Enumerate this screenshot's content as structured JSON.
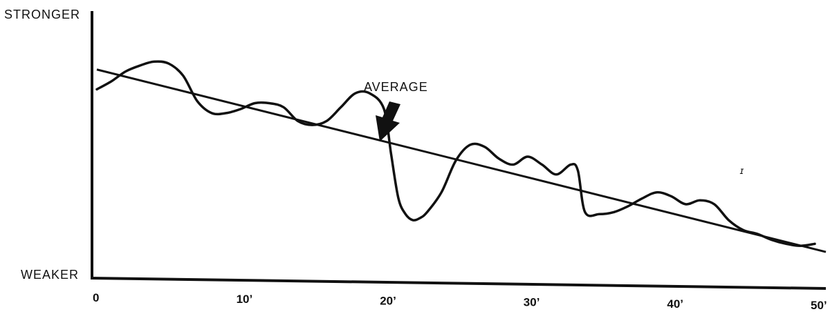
{
  "chart_data": {
    "type": "line",
    "ylabel_top": "STRONGER",
    "ylabel_bottom": "WEAKER",
    "annotation": "AVERAGE",
    "x_ticks": [
      {
        "value": 0,
        "label": "0"
      },
      {
        "value": 10,
        "label": "10’"
      },
      {
        "value": 20,
        "label": "20’"
      },
      {
        "value": 30,
        "label": "30’"
      },
      {
        "value": 40,
        "label": "40’"
      },
      {
        "value": 50,
        "label": "50’"
      }
    ],
    "xlim": [
      0,
      50
    ],
    "ylim": [
      0,
      1
    ],
    "grid": false,
    "series": [
      {
        "role": "average",
        "x": [
          0,
          50
        ],
        "y": [
          0.98,
          0.08
        ]
      },
      {
        "role": "signal",
        "x": [
          0,
          1,
          2,
          3,
          4,
          5,
          6,
          7,
          8,
          9,
          10,
          11,
          12,
          13,
          14,
          15,
          16,
          17,
          18,
          19,
          20,
          20.5,
          21,
          21.5,
          22,
          22.5,
          23,
          24,
          25,
          26,
          27,
          28,
          29,
          30,
          31,
          32,
          33,
          33.5,
          34,
          35,
          36,
          37,
          38,
          39,
          40,
          41,
          42,
          43,
          44,
          45,
          46,
          47,
          48,
          49,
          50
        ],
        "y": [
          0.88,
          0.92,
          0.97,
          1.0,
          1.02,
          1.01,
          0.95,
          0.82,
          0.76,
          0.76,
          0.78,
          0.81,
          0.81,
          0.79,
          0.72,
          0.7,
          0.72,
          0.79,
          0.86,
          0.86,
          0.78,
          0.55,
          0.33,
          0.25,
          0.22,
          0.23,
          0.26,
          0.36,
          0.52,
          0.6,
          0.59,
          0.53,
          0.5,
          0.54,
          0.5,
          0.45,
          0.5,
          0.47,
          0.26,
          0.25,
          0.26,
          0.29,
          0.33,
          0.36,
          0.34,
          0.3,
          0.32,
          0.3,
          0.22,
          0.17,
          0.15,
          0.12,
          0.1,
          0.09,
          0.1
        ]
      }
    ]
  }
}
